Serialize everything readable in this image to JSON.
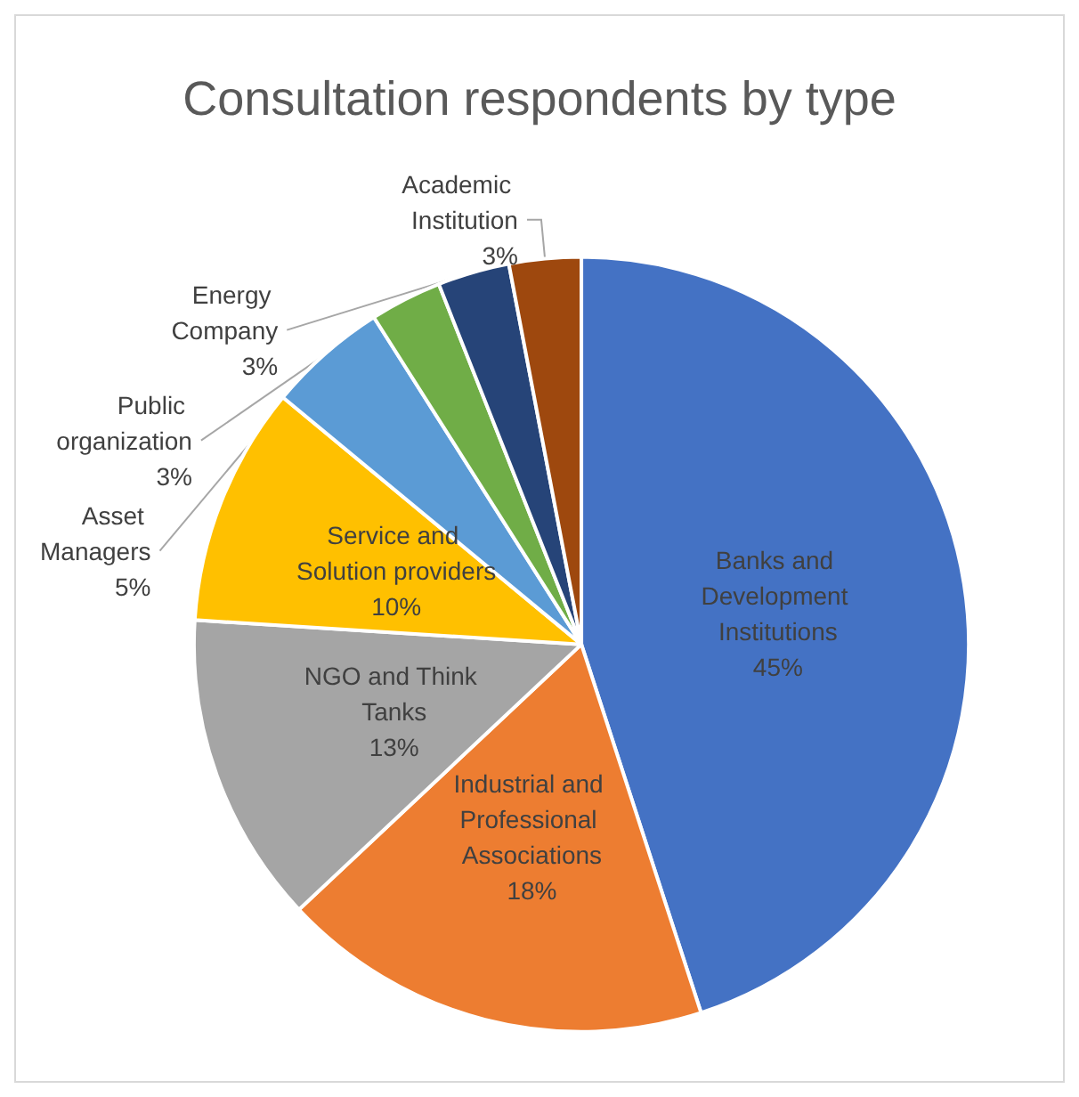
{
  "chart_data": {
    "type": "pie",
    "title": "Consultation respondents by type",
    "categories": [
      "Banks and Development Institutions",
      "Industrial and Professional Associations",
      "NGO and Think Tanks",
      "Service and Solution providers",
      "Asset Managers",
      "Public organization",
      "Energy Company",
      "Academic Institution"
    ],
    "values": [
      45,
      18,
      13,
      10,
      5,
      3,
      3,
      3
    ],
    "colors": [
      "#4472c4",
      "#ed7d31",
      "#a5a5a5",
      "#ffc000",
      "#5b9bd5",
      "#70ad47",
      "#264478",
      "#9e480e"
    ],
    "value_labels": [
      "45%",
      "18%",
      "13%",
      "10%",
      "5%",
      "3%",
      "3%",
      "3%"
    ],
    "legend": false
  }
}
